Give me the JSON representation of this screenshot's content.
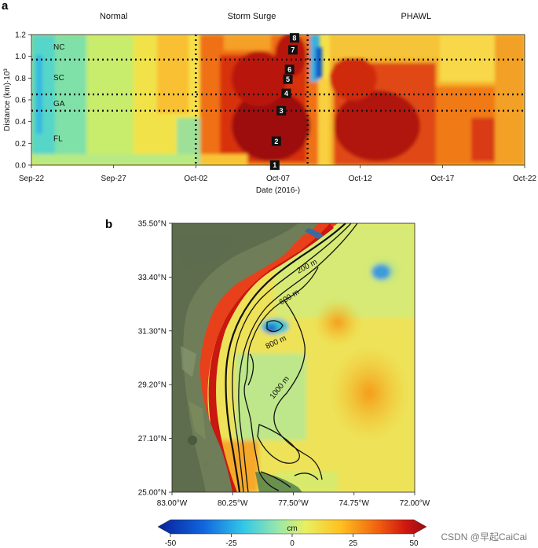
{
  "panel_a_label": "a",
  "panel_b_label": "b",
  "watermark": "CSDN @早起CaiCai",
  "chart_data": [
    {
      "type": "heatmap",
      "panel": "a",
      "xlabel": "Date (2016-)",
      "ylabel": "Distance (km)·10³",
      "x_ticks": [
        "Sep-22",
        "Sep-27",
        "Oct-02",
        "Oct-07",
        "Oct-12",
        "Oct-17",
        "Oct-22"
      ],
      "x_tick_days": [
        0,
        5,
        10,
        15,
        20,
        25,
        30
      ],
      "xlim_days": [
        0,
        30
      ],
      "y_ticks": [
        "0.0",
        "0.2",
        "0.4",
        "0.6",
        "0.8",
        "1.0",
        "1.2"
      ],
      "y_tick_values": [
        0.0,
        0.2,
        0.4,
        0.6,
        0.8,
        1.0,
        1.2
      ],
      "ylim": [
        0,
        1.2
      ],
      "phases": [
        {
          "label": "Normal",
          "start_day": 0,
          "end_day": 10
        },
        {
          "label": "Storm Surge",
          "start_day": 10,
          "end_day": 16.8
        },
        {
          "label": "PHAWL",
          "start_day": 16.8,
          "end_day": 30
        }
      ],
      "phase_boundaries_days": [
        10,
        16.8
      ],
      "region_lines": [
        0.97,
        0.65,
        0.5
      ],
      "regions": [
        {
          "label": "NC",
          "y": 1.09
        },
        {
          "label": "SC",
          "y": 0.81
        },
        {
          "label": "GA",
          "y": 0.57
        },
        {
          "label": "FL",
          "y": 0.25
        }
      ],
      "track_markers": [
        {
          "label": "1",
          "day": 14.8,
          "y": 0.0
        },
        {
          "label": "2",
          "day": 14.9,
          "y": 0.22
        },
        {
          "label": "3",
          "day": 15.2,
          "y": 0.5
        },
        {
          "label": "4",
          "day": 15.5,
          "y": 0.66
        },
        {
          "label": "5",
          "day": 15.6,
          "y": 0.79
        },
        {
          "label": "6",
          "day": 15.7,
          "y": 0.88
        },
        {
          "label": "7",
          "day": 15.9,
          "y": 1.06
        },
        {
          "label": "8",
          "day": 16.0,
          "y": 1.17
        }
      ]
    },
    {
      "type": "heatmap",
      "panel": "b",
      "x_ticks": [
        "83.00°W",
        "80.25°W",
        "77.50°W",
        "74.75°W",
        "72.00°W"
      ],
      "y_ticks": [
        "25.00°N",
        "27.10°N",
        "29.20°N",
        "31.30°N",
        "33.40°N",
        "35.50°N"
      ],
      "contours": [
        {
          "label": "200 m"
        },
        {
          "label": "600 m"
        },
        {
          "label": "800 m"
        },
        {
          "label": "1000 m"
        }
      ],
      "colorbar": {
        "unit": "cm",
        "range": [
          -50,
          50
        ],
        "ticks": [
          "-50",
          "-25",
          "0",
          "25",
          "50"
        ]
      }
    }
  ]
}
